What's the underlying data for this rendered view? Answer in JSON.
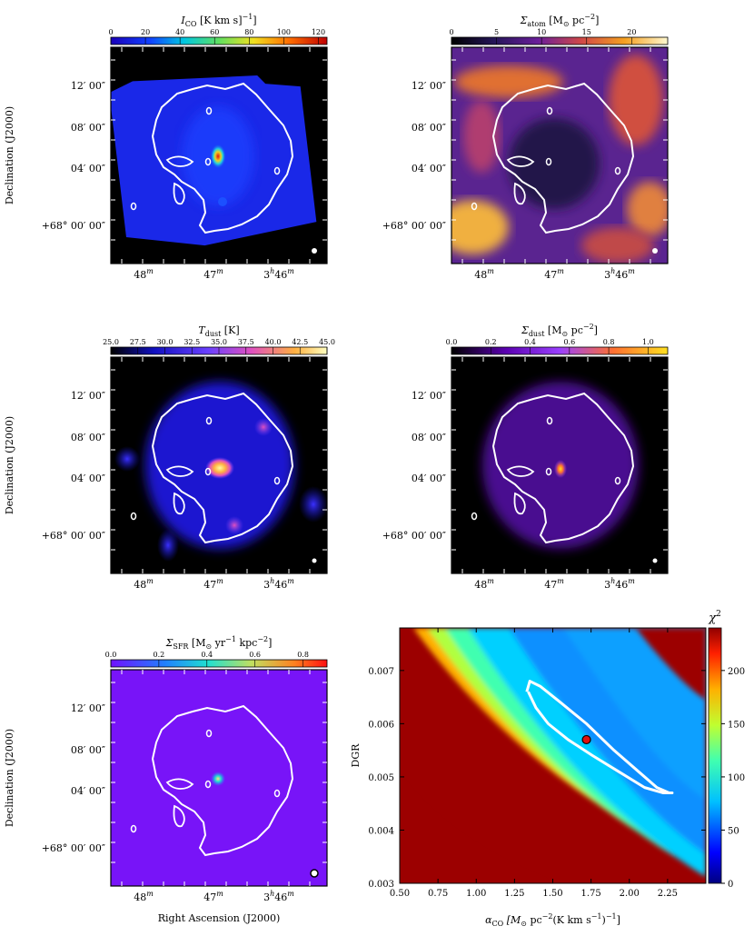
{
  "shared_axes": {
    "dec_label": "Declination (J2000)",
    "ra_label": "Right Ascension (J2000)",
    "dec_ticks": [
      "12′ 00″",
      "08′ 00″",
      "04′ 00″",
      "+68° 00′ 00″"
    ],
    "ra_ticks": [
      "48",
      "47",
      "3",
      "46"
    ],
    "ra_sup_m": "m",
    "ra_sup_h": "h"
  },
  "chart_data": [
    {
      "type": "heatmap",
      "panel": "ico",
      "colorbar_label": "I_CO [K km s^-1]",
      "colorbar_label_main": "I",
      "colorbar_label_sub": "CO",
      "colorbar_label_rest": " [K km s",
      "colorbar_label_sup": "−1",
      "colorbar_label_end": "]",
      "colorbar_ticks": [
        "0",
        "20",
        "40",
        "60",
        "80",
        "100",
        "120"
      ],
      "range": [
        0,
        125
      ],
      "colormap": "jet-like",
      "background": "#000000",
      "peak_color": "#e02010"
    },
    {
      "type": "heatmap",
      "panel": "atom",
      "colorbar_label_main": "Σ",
      "colorbar_label_sub": "atom",
      "colorbar_label_rest": " [M",
      "colorbar_label_sun": "⊙",
      "colorbar_label_end": " pc",
      "colorbar_label_sup": "−2",
      "colorbar_label_close": "]",
      "colorbar_ticks": [
        "0",
        "5",
        "10",
        "15",
        "20"
      ],
      "range": [
        0,
        24
      ],
      "colormap": "cubehelix-like"
    },
    {
      "type": "heatmap",
      "panel": "tdust",
      "colorbar_label_main": "T",
      "colorbar_label_sub": "dust",
      "colorbar_label_rest": " [K]",
      "colorbar_ticks": [
        "25.0",
        "27.5",
        "30.0",
        "32.5",
        "35.0",
        "37.5",
        "40.0",
        "42.5",
        "45.0"
      ],
      "range": [
        25,
        45
      ],
      "colormap": "blue-magenta-yellow"
    },
    {
      "type": "heatmap",
      "panel": "sdust",
      "colorbar_label_main": "Σ",
      "colorbar_label_sub": "dust",
      "colorbar_label_rest": " [M",
      "colorbar_label_sun": "⊙",
      "colorbar_label_end": " pc",
      "colorbar_label_sup": "−2",
      "colorbar_label_close": "]",
      "colorbar_ticks": [
        "0.0",
        "0.2",
        "0.4",
        "0.6",
        "0.8",
        "1.0"
      ],
      "range": [
        0,
        1.1
      ],
      "colormap": "purple-orange-yellow"
    },
    {
      "type": "heatmap",
      "panel": "sfr",
      "colorbar_label_main": "Σ",
      "colorbar_label_sub": "SFR",
      "colorbar_label_rest": " [M",
      "colorbar_label_sun": "⊙",
      "colorbar_label_end": " yr",
      "colorbar_label_sup": "−1",
      "colorbar_label_end2": " kpc",
      "colorbar_label_sup2": "−2",
      "colorbar_label_close": "]",
      "colorbar_ticks": [
        "0.0",
        "0.2",
        "0.4",
        "0.6",
        "0.8"
      ],
      "range": [
        0,
        0.9
      ],
      "colormap": "rainbow"
    },
    {
      "type": "heatmap",
      "panel": "chi2",
      "xlabel_main": "α",
      "xlabel_sub": "CO",
      "xlabel_rest": " [M",
      "xlabel_sun": "⊙",
      "xlabel_pc": " pc",
      "xlabel_sup": "−2",
      "xlabel_end": "(K km s",
      "xlabel_sup2": "−1",
      "xlabel_close": ")",
      "xlabel_sup3": "−1",
      "xlabel_final": "]",
      "ylabel": "DGR",
      "x_ticks": [
        0.5,
        0.75,
        1.0,
        1.25,
        1.5,
        1.75,
        2.0,
        2.25
      ],
      "x_tick_labels": [
        "0.50",
        "0.75",
        "1.00",
        "1.25",
        "1.50",
        "1.75",
        "2.00",
        "2.25"
      ],
      "y_ticks": [
        0.003,
        0.004,
        0.005,
        0.006,
        0.007
      ],
      "y_tick_labels": [
        "0.003",
        "0.004",
        "0.005",
        "0.006",
        "0.007"
      ],
      "xlim": [
        0.5,
        2.5
      ],
      "ylim": [
        0.003,
        0.0078
      ],
      "colorbar_title": "χ",
      "colorbar_title_sup": "2",
      "colorbar_ticks": [
        0,
        50,
        100,
        150,
        200
      ],
      "colorbar_range": [
        0,
        240
      ],
      "best_fit": {
        "x": 1.72,
        "y": 0.0057
      },
      "contour": {
        "x": [
          1.33,
          1.35,
          1.42,
          1.55,
          1.72,
          1.9,
          2.06,
          2.18,
          2.26,
          2.28,
          2.22,
          2.1,
          1.93,
          1.76,
          1.6,
          1.47,
          1.39,
          1.34
        ],
        "y": [
          0.0066,
          0.0068,
          0.0067,
          0.0064,
          0.006,
          0.0055,
          0.0051,
          0.0048,
          0.0047,
          0.0047,
          0.0047,
          0.0048,
          0.0051,
          0.0054,
          0.0057,
          0.006,
          0.0063,
          0.0066
        ]
      }
    }
  ]
}
